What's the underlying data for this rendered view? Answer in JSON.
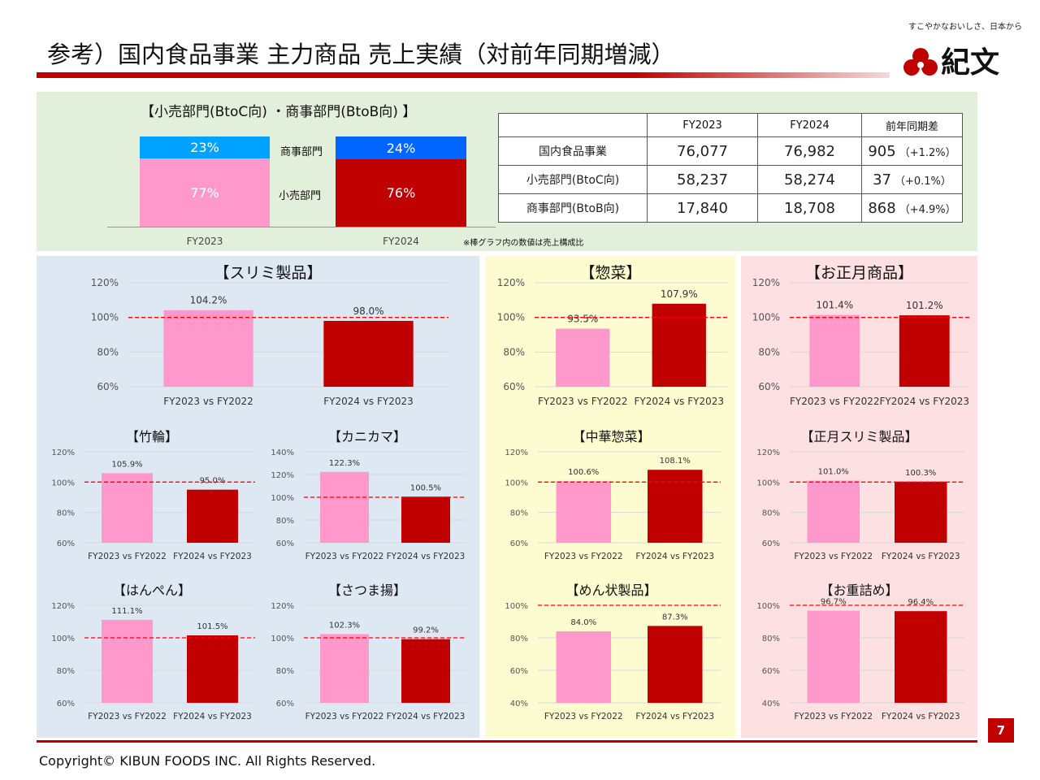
{
  "page": {
    "title": "参考）国内食品事業 主力商品 売上実績（対前年同期増減）",
    "page_number": "7",
    "copyright": "Copyright©  KIBUN FOODS INC. All Rights Reserved.",
    "logo": {
      "tagline": "すこやかなおいしさ、日本から",
      "name": "紀文"
    },
    "colors": {
      "accent": "#c00000",
      "pink": "#ff99cc",
      "red": "#c00000",
      "blue_light": "#00a2ff",
      "blue": "#0066ff",
      "dash": "#ff0000"
    }
  },
  "composition": {
    "title": "【小売部門(BtoC向) ・商事部門(BtoB向) 】",
    "segment_labels": {
      "btob": "商事部門",
      "btoc": "小売部門"
    },
    "note": "※棒グラフ内の数値は売上構成比",
    "bars": [
      {
        "year": "FY2023",
        "btob": 23,
        "btoc": 77,
        "btob_label": "23%",
        "btoc_label": "77%"
      },
      {
        "year": "FY2024",
        "btob": 24,
        "btoc": 76,
        "btob_label": "24%",
        "btoc_label": "76%"
      }
    ]
  },
  "table": {
    "headers": [
      "",
      "FY2023",
      "FY2024",
      "前年同期差"
    ],
    "rows": [
      {
        "label": "国内食品事業",
        "fy2023": "76,077",
        "fy2024": "76,982",
        "diff": "905",
        "pct": "（+1.2%）"
      },
      {
        "label": "小売部門(BtoC向)",
        "fy2023": "58,237",
        "fy2024": "58,274",
        "diff": "37",
        "pct": "（+0.1%）"
      },
      {
        "label": "商事部門(BtoB向)",
        "fy2023": "17,840",
        "fy2024": "18,708",
        "diff": "868",
        "pct": "（+4.9%）"
      }
    ]
  },
  "chart_data": [
    {
      "type": "bar",
      "title": "【スリミ製品】",
      "categories": [
        "FY2023 vs FY2022",
        "FY2024 vs FY2023"
      ],
      "values": [
        104.2,
        98.0
      ],
      "labels": [
        "104.2%",
        "98.0%"
      ],
      "ylim": [
        60,
        120
      ],
      "yticks": [
        "60%",
        "80%",
        "100%",
        "120%"
      ],
      "reference_line": 100
    },
    {
      "type": "bar",
      "title": "【惣菜】",
      "categories": [
        "FY2023 vs FY2022",
        "FY2024 vs FY2023"
      ],
      "values": [
        93.5,
        107.9
      ],
      "labels": [
        "93.5%",
        "107.9%"
      ],
      "ylim": [
        60,
        120
      ],
      "yticks": [
        "60%",
        "80%",
        "100%",
        "120%"
      ],
      "reference_line": 100
    },
    {
      "type": "bar",
      "title": "【お正月商品】",
      "categories": [
        "FY2023 vs FY2022",
        "FY2024 vs FY2023"
      ],
      "values": [
        101.4,
        101.2
      ],
      "labels": [
        "101.4%",
        "101.2%"
      ],
      "ylim": [
        60,
        120
      ],
      "yticks": [
        "60%",
        "80%",
        "100%",
        "120%"
      ],
      "reference_line": 100
    },
    {
      "type": "bar",
      "title": "【竹輪】",
      "categories": [
        "FY2023 vs FY2022",
        "FY2024 vs FY2023"
      ],
      "values": [
        105.9,
        95.0
      ],
      "labels": [
        "105.9%",
        "95.0%"
      ],
      "ylim": [
        60,
        120
      ],
      "yticks": [
        "60%",
        "80%",
        "100%",
        "120%"
      ],
      "reference_line": 100
    },
    {
      "type": "bar",
      "title": "【カニカマ】",
      "categories": [
        "FY2023 vs FY2022",
        "FY2024 vs FY2023"
      ],
      "values": [
        122.3,
        100.5
      ],
      "labels": [
        "122.3%",
        "100.5%"
      ],
      "ylim": [
        60,
        140
      ],
      "yticks": [
        "60%",
        "80%",
        "100%",
        "120%",
        "140%"
      ],
      "reference_line": 100
    },
    {
      "type": "bar",
      "title": "【中華惣菜】",
      "categories": [
        "FY2023 vs FY2022",
        "FY2024 vs FY2023"
      ],
      "values": [
        100.6,
        108.1
      ],
      "labels": [
        "100.6%",
        "108.1%"
      ],
      "ylim": [
        60,
        120
      ],
      "yticks": [
        "60%",
        "80%",
        "100%",
        "120%"
      ],
      "reference_line": 100
    },
    {
      "type": "bar",
      "title": "【正月スリミ製品】",
      "categories": [
        "FY2023 vs FY2022",
        "FY2024 vs FY2023"
      ],
      "values": [
        101.0,
        100.3
      ],
      "labels": [
        "101.0%",
        "100.3%"
      ],
      "ylim": [
        60,
        120
      ],
      "yticks": [
        "60%",
        "80%",
        "100%",
        "120%"
      ],
      "reference_line": 100
    },
    {
      "type": "bar",
      "title": "【はんぺん】",
      "categories": [
        "FY2023 vs FY2022",
        "FY2024 vs FY2023"
      ],
      "values": [
        111.1,
        101.5
      ],
      "labels": [
        "111.1%",
        "101.5%"
      ],
      "ylim": [
        60,
        120
      ],
      "yticks": [
        "60%",
        "80%",
        "100%",
        "120%"
      ],
      "reference_line": 100
    },
    {
      "type": "bar",
      "title": "【さつま揚】",
      "categories": [
        "FY2023 vs FY2022",
        "FY2024 vs FY2023"
      ],
      "values": [
        102.3,
        99.2
      ],
      "labels": [
        "102.3%",
        "99.2%"
      ],
      "ylim": [
        60,
        120
      ],
      "yticks": [
        "60%",
        "80%",
        "100%",
        "120%"
      ],
      "reference_line": 100
    },
    {
      "type": "bar",
      "title": "【めん状製品】",
      "categories": [
        "FY2023 vs FY2022",
        "FY2024 vs FY2023"
      ],
      "values": [
        84.0,
        87.3
      ],
      "labels": [
        "84.0%",
        "87.3%"
      ],
      "ylim": [
        40,
        100
      ],
      "yticks": [
        "40%",
        "60%",
        "80%",
        "100%"
      ],
      "reference_line": 100
    },
    {
      "type": "bar",
      "title": "【お重詰め】",
      "categories": [
        "FY2023 vs FY2022",
        "FY2024 vs FY2023"
      ],
      "values": [
        96.7,
        96.4
      ],
      "labels": [
        "96.7%",
        "96.4%"
      ],
      "ylim": [
        40,
        100
      ],
      "yticks": [
        "40%",
        "60%",
        "80%",
        "100%"
      ],
      "reference_line": 100
    }
  ]
}
